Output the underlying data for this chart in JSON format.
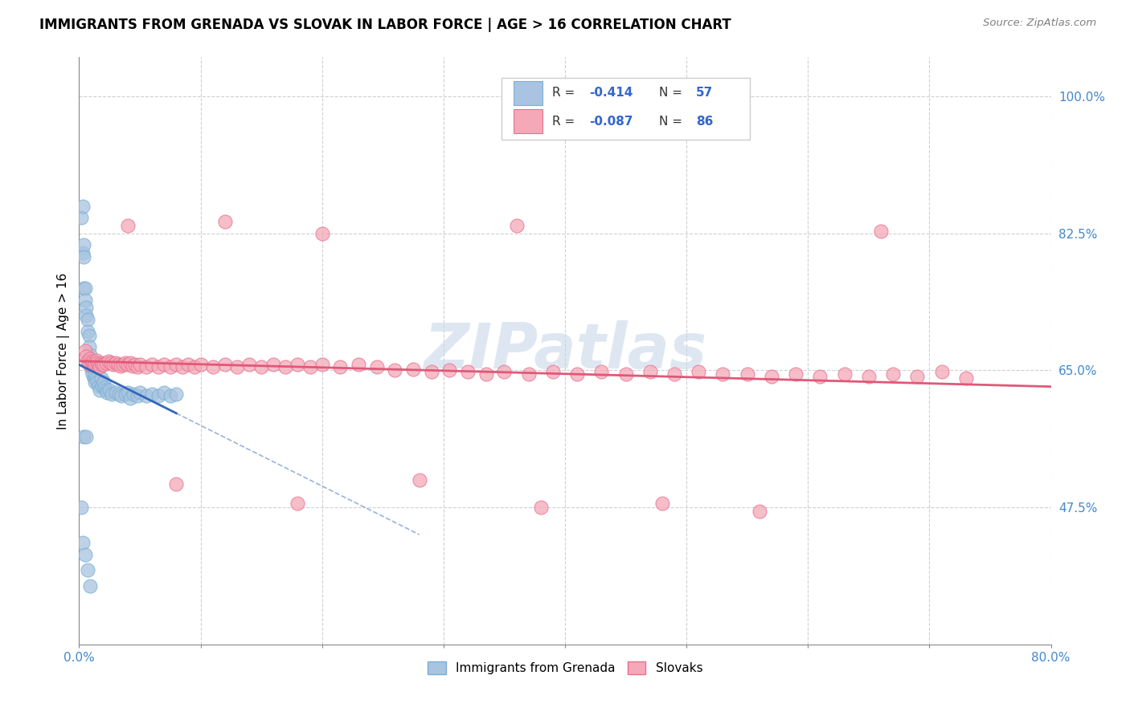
{
  "title": "IMMIGRANTS FROM GRENADA VS SLOVAK IN LABOR FORCE | AGE > 16 CORRELATION CHART",
  "source": "Source: ZipAtlas.com",
  "ylabel": "In Labor Force | Age > 16",
  "xmin": 0.0,
  "xmax": 0.8,
  "ymin": 0.3,
  "ymax": 1.05,
  "grenada_color": "#a8c4e0",
  "grenada_edge_color": "#7aafd4",
  "slovak_color": "#f4a8b8",
  "slovak_edge_color": "#e87090",
  "grenada_R": -0.414,
  "grenada_N": 57,
  "slovak_R": -0.087,
  "slovak_N": 86,
  "watermark": "ZIPatlas",
  "watermark_color": "#c8d8e8",
  "legend_label1": "Immigrants from Grenada",
  "legend_label2": "Slovaks",
  "line_color_grenada": "#3366bb",
  "line_color_slovak": "#e05878"
}
